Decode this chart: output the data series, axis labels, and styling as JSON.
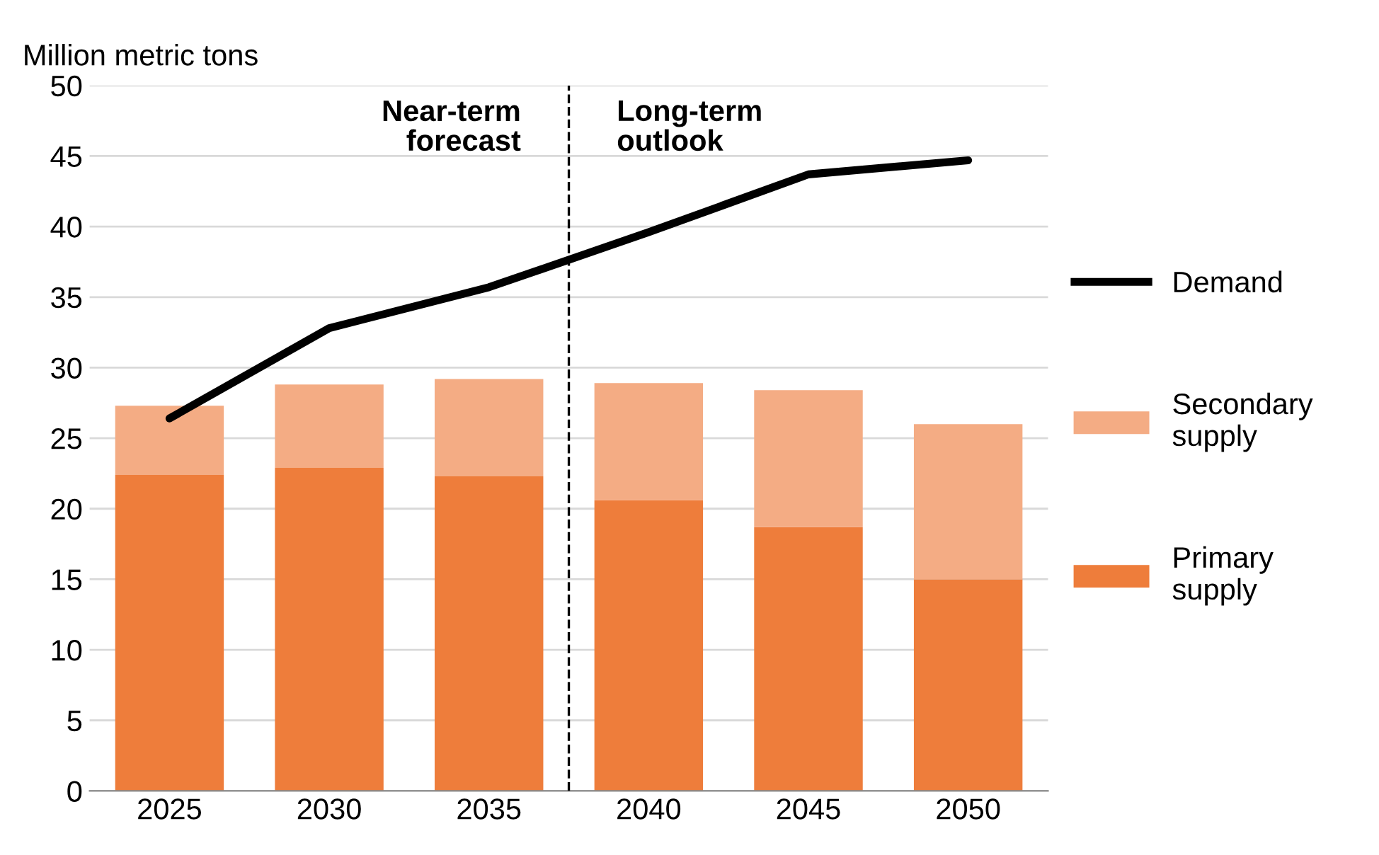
{
  "chart_data": {
    "type": "bar",
    "stacked": true,
    "ylabel": "Million metric tons",
    "x": [
      2025,
      2030,
      2035,
      2040,
      2045,
      2050
    ],
    "series": [
      {
        "name": "Primary supply",
        "color": "#ee7d3b",
        "values": [
          22.4,
          22.9,
          22.3,
          20.6,
          18.7,
          15.0
        ]
      },
      {
        "name": "Secondary supply",
        "color": "#f4ac84",
        "values": [
          4.9,
          5.9,
          6.9,
          8.3,
          9.7,
          11.0
        ]
      },
      {
        "name": "Demand",
        "type": "line",
        "color": "#000000",
        "values": [
          26.4,
          32.8,
          35.7,
          39.6,
          43.7,
          44.7
        ]
      }
    ],
    "xlim": [
      2022.5,
      2052.5
    ],
    "xticks": [
      2025,
      2030,
      2035,
      2040,
      2045,
      2050
    ],
    "ylim": [
      0,
      50
    ],
    "yticks": [
      0,
      5,
      10,
      15,
      20,
      25,
      30,
      35,
      40,
      45,
      50
    ],
    "ref_lines": [
      {
        "axis": "x",
        "value": 2037.5,
        "color": "#000000",
        "line_style": "dashed"
      }
    ],
    "annotations": [
      "Near-term\nforecast",
      "Long-term\noutlook"
    ],
    "grid": "y",
    "legend": "right"
  }
}
